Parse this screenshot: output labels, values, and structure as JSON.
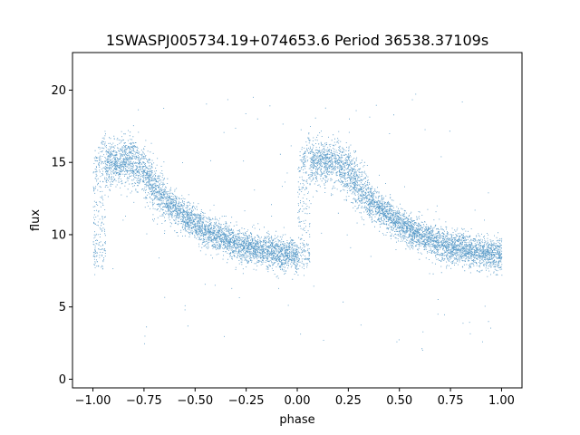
{
  "chart_data": {
    "type": "scatter",
    "title": "1SWASPJ005734.19+074653.6 Period 36538.37109s",
    "xlabel": "phase",
    "ylabel": "flux",
    "xlim": [
      -1.1,
      1.1
    ],
    "ylim": [
      -0.6,
      22.6
    ],
    "xticks": [
      -1.0,
      -0.75,
      -0.5,
      -0.25,
      0.0,
      0.25,
      0.5,
      0.75,
      1.0
    ],
    "xtick_labels": [
      "−1.00",
      "−0.75",
      "−0.50",
      "−0.25",
      "0.00",
      "0.25",
      "0.50",
      "0.75",
      "1.00"
    ],
    "yticks": [
      0,
      5,
      10,
      15,
      20
    ],
    "ytick_labels": [
      "0",
      "5",
      "10",
      "15",
      "20"
    ],
    "grid": false,
    "point_color": "#1f77b4",
    "light_curve": {
      "phase": [
        0.0,
        0.05,
        0.1,
        0.15,
        0.2,
        0.25,
        0.3,
        0.35,
        0.4,
        0.45,
        0.5,
        0.55,
        0.6,
        0.65,
        0.7,
        0.75,
        0.8,
        0.85,
        0.9,
        0.95,
        1.0
      ],
      "flux": [
        12.5,
        14.8,
        15.1,
        15.1,
        15.0,
        14.4,
        13.3,
        12.4,
        11.8,
        11.3,
        10.8,
        10.3,
        10.0,
        9.7,
        9.4,
        9.2,
        9.0,
        8.9,
        8.8,
        8.7,
        8.6
      ]
    }
  }
}
